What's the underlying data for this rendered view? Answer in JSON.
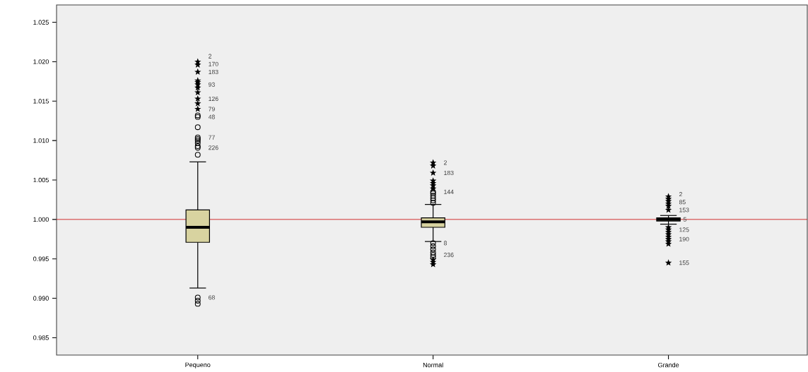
{
  "chart_data": {
    "type": "box",
    "categories": [
      "Pequeno",
      "Normal",
      "Grande"
    ],
    "color": "#d8d3a0",
    "boxes": [
      {
        "low": 0.9913,
        "q1": 0.9971,
        "median": 0.999,
        "q3": 1.0012,
        "high": 1.0073
      },
      {
        "low": 0.9972,
        "q1": 0.999,
        "median": 0.9997,
        "q3": 1.0002,
        "high": 1.0019
      },
      {
        "low": 0.9994,
        "q1": 0.9998,
        "median": 1.0,
        "q3": 1.0002,
        "high": 1.0005
      }
    ],
    "series": [
      {
        "type": "scatter",
        "marker": "circle",
        "color": "#000000",
        "x": [
          "Pequeno",
          "Pequeno",
          "Pequeno",
          "Pequeno",
          "Pequeno",
          "Pequeno",
          "Pequeno",
          "Pequeno",
          "Pequeno",
          "Pequeno",
          "Pequeno",
          "Pequeno",
          "Pequeno",
          "Normal",
          "Normal",
          "Normal",
          "Normal",
          "Normal",
          "Normal",
          "Normal",
          "Normal",
          "Normal",
          "Normal",
          "Normal",
          "Normal"
        ],
        "values": [
          0.9901,
          0.9897,
          0.9893,
          1.0082,
          1.0091,
          1.0093,
          1.0097,
          1.01,
          1.0102,
          1.0104,
          1.0117,
          1.013,
          1.0132,
          1.0021,
          1.0024,
          1.0027,
          1.003,
          1.0033,
          1.0035,
          0.997,
          0.9966,
          0.9962,
          0.9958,
          0.9955,
          0.9952
        ]
      },
      {
        "type": "scatter",
        "marker": "star",
        "color": "#000000",
        "x": [
          "Pequeno",
          "Pequeno",
          "Pequeno",
          "Pequeno",
          "Pequeno",
          "Pequeno",
          "Pequeno",
          "Pequeno",
          "Pequeno",
          "Pequeno",
          "Pequeno",
          "Normal",
          "Normal",
          "Normal",
          "Normal",
          "Normal",
          "Normal",
          "Normal",
          "Normal",
          "Normal",
          "Normal",
          "Grande",
          "Grande",
          "Grande",
          "Grande",
          "Grande",
          "Grande",
          "Grande",
          "Grande",
          "Grande",
          "Grande",
          "Grande",
          "Grande",
          "Grande",
          "Grande",
          "Grande"
        ],
        "values": [
          1.014,
          1.0147,
          1.0153,
          1.0161,
          1.0167,
          1.0171,
          1.0174,
          1.0176,
          1.0187,
          1.0196,
          1.02,
          1.0039,
          1.0043,
          1.0046,
          1.0049,
          1.0059,
          1.0068,
          1.0072,
          0.9949,
          0.9946,
          0.9943,
          1.0012,
          1.0017,
          1.002,
          1.0023,
          1.0026,
          1.0029,
          0.999,
          0.9987,
          0.9984,
          0.9981,
          0.9978,
          0.9975,
          0.9972,
          0.9969,
          0.9945
        ]
      }
    ],
    "ylim": [
      0.9828,
      1.0272
    ],
    "yticks": [
      {
        "value": 0.985,
        "label": "0.985"
      },
      {
        "value": 0.99,
        "label": "0.990"
      },
      {
        "value": 0.995,
        "label": "0.995"
      },
      {
        "value": 1.0,
        "label": "1.000"
      },
      {
        "value": 1.005,
        "label": "1.005"
      },
      {
        "value": 1.01,
        "label": "1.010"
      },
      {
        "value": 1.015,
        "label": "1.015"
      },
      {
        "value": 1.02,
        "label": "1.020"
      },
      {
        "value": 1.025,
        "label": "1.025"
      }
    ],
    "ref_lines": [
      {
        "axis": "y",
        "value": 1.0,
        "color": "#cc0000"
      }
    ],
    "annotations": [
      {
        "text": "2",
        "x": "Pequeno",
        "y": 1.02
      },
      {
        "text": "170",
        "x": "Pequeno",
        "y": 1.0196
      },
      {
        "text": "183",
        "x": "Pequeno",
        "y": 1.0187
      },
      {
        "text": "93",
        "x": "Pequeno",
        "y": 1.0171
      },
      {
        "text": "126",
        "x": "Pequeno",
        "y": 1.0153
      },
      {
        "text": "79",
        "x": "Pequeno",
        "y": 1.014
      },
      {
        "text": "48",
        "x": "Pequeno",
        "y": 1.013
      },
      {
        "text": "77",
        "x": "Pequeno",
        "y": 1.0104
      },
      {
        "text": "226",
        "x": "Pequeno",
        "y": 1.0091
      },
      {
        "text": "68",
        "x": "Pequeno",
        "y": 0.9901
      },
      {
        "text": "2",
        "x": "Normal",
        "y": 1.0072
      },
      {
        "text": "183",
        "x": "Normal",
        "y": 1.0059
      },
      {
        "text": "144",
        "x": "Normal",
        "y": 1.0035
      },
      {
        "text": "8",
        "x": "Normal",
        "y": 0.997
      },
      {
        "text": "236",
        "x": "Normal",
        "y": 0.9955
      },
      {
        "text": "2",
        "x": "Grande",
        "y": 1.0029
      },
      {
        "text": "85",
        "x": "Grande",
        "y": 1.002
      },
      {
        "text": "153",
        "x": "Grande",
        "y": 1.0012
      },
      {
        "text": "5",
        "x": "Grande",
        "y": 1.0
      },
      {
        "text": "125",
        "x": "Grande",
        "y": 0.9987
      },
      {
        "text": "190",
        "x": "Grande",
        "y": 0.9975
      },
      {
        "text": "155",
        "x": "Grande",
        "y": 0.9945
      }
    ]
  }
}
